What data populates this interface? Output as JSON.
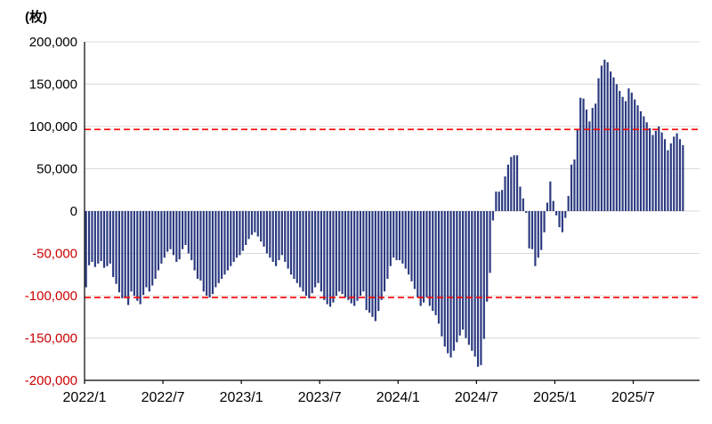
{
  "chart_data": {
    "type": "bar",
    "title": "",
    "unit_label": "(枚)",
    "series_name": "weekly-net-positions",
    "y_axis": {
      "min": -200000,
      "max": 200000,
      "tick_interval": 50000,
      "tick_labels": [
        "200,000",
        "150,000",
        "100,000",
        "50,000",
        "0",
        "-50,000",
        "-100,000",
        "-150,000",
        "-200,000"
      ]
    },
    "x_axis": {
      "tick_labels": [
        "2022/1",
        "2022/7",
        "2023/1",
        "2023/7",
        "2024/1",
        "2024/7",
        "2025/1",
        "2025/7"
      ],
      "tick_week_indices": [
        0,
        26,
        52,
        78,
        104,
        130,
        156,
        182
      ],
      "total_axis_weeks": 204
    },
    "reference_lines": {
      "upper": 96500,
      "lower": -102000,
      "color": "#ff0000",
      "style": "dashed"
    },
    "colors": {
      "bar": "#2b3a80",
      "grid": "#d9d9d9",
      "axis": "#000000",
      "positive_label": "#000000",
      "negative_label": "#cc0000"
    },
    "grid": true,
    "legend": false,
    "values": [
      -90000,
      -64000,
      -60000,
      -66000,
      -62000,
      -59000,
      -67000,
      -65000,
      -62000,
      -78000,
      -86000,
      -96000,
      -103000,
      -102000,
      -111000,
      -95000,
      -100000,
      -106000,
      -110000,
      -99000,
      -90000,
      -95000,
      -88000,
      -80000,
      -70000,
      -62000,
      -55000,
      -48000,
      -45000,
      -52000,
      -60000,
      -57000,
      -45000,
      -40000,
      -50000,
      -58000,
      -70000,
      -80000,
      -82000,
      -95000,
      -100000,
      -102000,
      -98000,
      -90000,
      -85000,
      -80000,
      -75000,
      -70000,
      -65000,
      -60000,
      -55000,
      -52000,
      -47000,
      -40000,
      -33000,
      -28000,
      -25000,
      -30000,
      -36000,
      -42000,
      -50000,
      -55000,
      -60000,
      -65000,
      -58000,
      -52000,
      -60000,
      -68000,
      -75000,
      -80000,
      -85000,
      -90000,
      -95000,
      -100000,
      -103000,
      -97000,
      -90000,
      -85000,
      -95000,
      -105000,
      -110000,
      -113000,
      -108000,
      -100000,
      -95000,
      -98000,
      -102000,
      -105000,
      -109000,
      -112000,
      -106000,
      -100000,
      -95000,
      -117000,
      -120000,
      -125000,
      -130000,
      -118000,
      -105000,
      -95000,
      -80000,
      -65000,
      -55000,
      -58000,
      -58000,
      -62000,
      -68000,
      -75000,
      -83000,
      -92000,
      -102000,
      -112000,
      -108000,
      -102000,
      -112000,
      -118000,
      -123000,
      -133000,
      -148000,
      -160000,
      -168000,
      -173000,
      -165000,
      -155000,
      -147000,
      -140000,
      -150000,
      -158000,
      -165000,
      -172000,
      -184000,
      -182000,
      -151000,
      -107000,
      -73000,
      -11000,
      23000,
      23000,
      25000,
      41000,
      55000,
      64000,
      66000,
      66000,
      29000,
      15000,
      -2000,
      -44000,
      -45000,
      -65000,
      -55000,
      -46000,
      -25000,
      10000,
      35000,
      12000,
      -5000,
      -19000,
      -25000,
      -8000,
      18000,
      55000,
      61000,
      96000,
      134000,
      133000,
      120000,
      106000,
      122000,
      127000,
      157000,
      172000,
      179000,
      176000,
      165000,
      158000,
      150000,
      142000,
      135000,
      130000,
      145000,
      140000,
      132000,
      125000,
      118000,
      112000,
      105000,
      98000,
      90000,
      95000,
      100000,
      93000,
      85000,
      72000,
      80000,
      88000,
      92000,
      85000,
      78000
    ]
  }
}
